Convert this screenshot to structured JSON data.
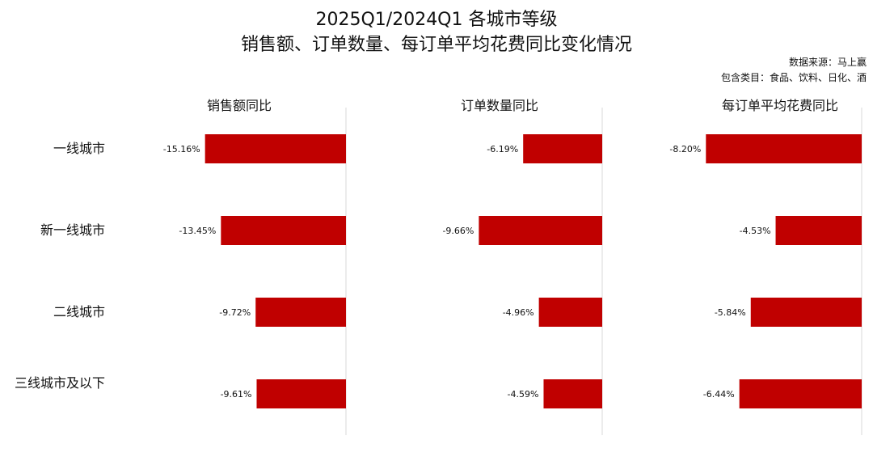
{
  "header": {
    "title_line1": "2025Q1/2024Q1 各城市等级",
    "title_line2": "销售额、订单数量、每订单平均花费同比变化情况",
    "source_line1": "数据来源：马上赢",
    "source_line2": "包含类目：食品、饮料、日化、酒"
  },
  "colors": {
    "bar": "#c00000",
    "axis": "#d9d9d9"
  },
  "chart_data": {
    "type": "bar",
    "orientation": "horizontal",
    "categories": [
      "一线城市",
      "新一线城市",
      "二线城市",
      "三线城市及以下"
    ],
    "panels": [
      {
        "title": "销售额同比",
        "values": [
          -15.16,
          -13.45,
          -9.72,
          -9.61
        ],
        "labels": [
          "-15.16%",
          "-13.45%",
          "-9.72%",
          "-9.61%"
        ]
      },
      {
        "title": "订单数量同比",
        "values": [
          -6.19,
          -9.66,
          -4.96,
          -4.59
        ],
        "labels": [
          "-6.19%",
          "-9.66%",
          "-4.96%",
          "-4.59%"
        ]
      },
      {
        "title": "每订单平均花费同比",
        "values": [
          -8.2,
          -4.53,
          -5.84,
          -6.44
        ],
        "labels": [
          "-8.20%",
          "-4.53%",
          "-5.84%",
          "-6.44%"
        ]
      }
    ],
    "value_unit": "%"
  }
}
